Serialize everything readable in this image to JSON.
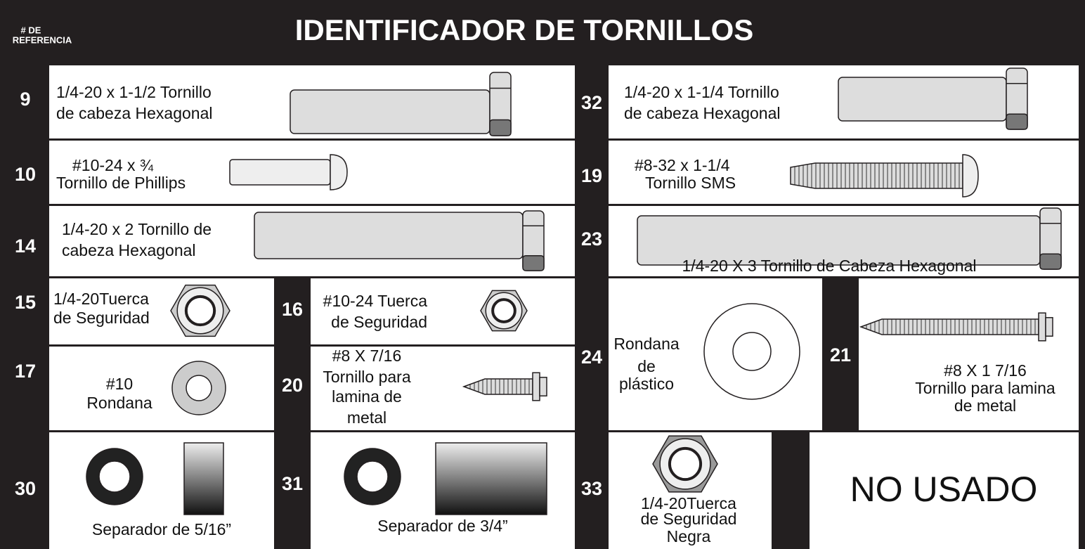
{
  "header": {
    "ref_label": [
      "# DE",
      "REFERENCIA"
    ],
    "title": "IDENTIFICADOR DE TORNILLOS"
  },
  "items": [
    {
      "ref": "9",
      "lines": [
        "1/4-20 x 1-1/2 Tornillo",
        "de cabeza Hexagonal"
      ]
    },
    {
      "ref": "32",
      "lines": [
        "1/4-20 x 1-1/4 Tornillo",
        "de cabeza Hexagonal"
      ]
    },
    {
      "ref": "10",
      "lines": [
        "#10-24  x  ¾",
        "Tornillo de Phillips"
      ]
    },
    {
      "ref": "19",
      "lines": [
        "#8-32  x  1-1/4",
        "Tornillo SMS"
      ]
    },
    {
      "ref": "14",
      "lines": [
        "1/4-20 x 2 Tornillo de",
        "cabeza Hexagonal"
      ]
    },
    {
      "ref": "23",
      "lines": [
        "1/4-20 X 3 Tornillo de Cabeza Hexagonal"
      ]
    },
    {
      "ref": "15",
      "lines": [
        "1/4-20Tuerca",
        "de Seguridad"
      ]
    },
    {
      "ref": "16",
      "lines": [
        "#10-24 Tuerca",
        "de Seguridad"
      ]
    },
    {
      "ref": "24",
      "lines": [
        "Rondana",
        "de",
        "plástico"
      ]
    },
    {
      "ref": "21",
      "lines": [
        "#8 X 1 7/16",
        "Tornillo para lamina",
        "de metal"
      ]
    },
    {
      "ref": "17",
      "lines": [
        "#10",
        "Rondana"
      ]
    },
    {
      "ref": "20",
      "lines": [
        "#8 X 7/16",
        "Tornillo para",
        "lamina de",
        "metal"
      ]
    },
    {
      "ref": "30",
      "lines": [
        "Separador de 5/16”"
      ]
    },
    {
      "ref": "31",
      "lines": [
        "Separador de 3/4”"
      ]
    },
    {
      "ref": "33",
      "lines": [
        "1/4-20Tuerca",
        "de Seguridad",
        "Negra"
      ]
    }
  ],
  "not_used": "NO USADO"
}
